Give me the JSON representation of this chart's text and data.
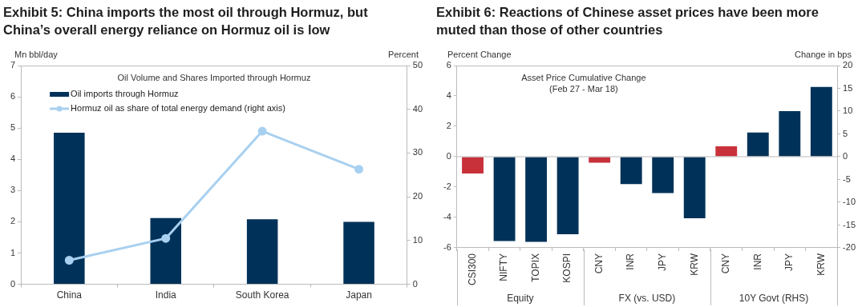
{
  "chart_data": [
    {
      "type": "bar",
      "title": "Exhibit 5: China imports the most oil through Hormuz, but China’s overall energy reliance on Hormuz oil is low",
      "subtitle": "Oil Volume and Shares Imported through Hormuz",
      "ylabel": "Mn bbl/day",
      "y2label": "Percent",
      "categories": [
        "China",
        "India",
        "South Korea",
        "Japan"
      ],
      "series": [
        {
          "name": "Oil imports through Hormuz",
          "color": "#003259",
          "values": [
            4.85,
            2.12,
            2.08,
            2.0
          ]
        },
        {
          "name": "Hormuz oil as share of total energy demand (right axis)",
          "type": "line",
          "axis": "y2",
          "color": "#a8d0f0",
          "values": [
            5.5,
            10.5,
            35,
            26.3
          ]
        }
      ],
      "ylim": [
        0,
        7
      ],
      "yticks": [
        0,
        1,
        2,
        3,
        4,
        5,
        6,
        7
      ],
      "y2lim": [
        0,
        50
      ],
      "y2ticks": [
        0,
        10,
        20,
        30,
        40,
        50
      ],
      "grid": false,
      "legend": "top left",
      "marker": "circle",
      "line_style": "solid"
    },
    {
      "type": "bar",
      "title": "Exhibit 6: Reactions of Chinese asset prices have been more muted than those of other countries",
      "subtitle": "Asset Price Cumulative Change\n(Feb 27 - Mar 18)",
      "ylabel": "Percent Change",
      "y2label": "Change in bps",
      "categories": [
        "CSI300",
        "NIFTY",
        "TOPIX",
        "KOSPI",
        "CNY",
        "INR",
        "JPY",
        "KRW",
        "CNY",
        "INR",
        "JPY",
        "KRW"
      ],
      "series": [
        {
          "colors": [
            "#c8313a",
            "#003259",
            "#003259",
            "#003259",
            "#c8313a",
            "#003259",
            "#003259",
            "#003259",
            "#003259",
            "#003259",
            "#003259",
            "#003259"
          ],
          "values": [
            -1.1,
            -5.55,
            -5.6,
            -5.1,
            -0.4,
            -1.8,
            -2.4,
            -4.05,
            null,
            null,
            null,
            null
          ]
        },
        {
          "axis": "y2",
          "colors": [
            "#003259",
            "#003259",
            "#003259",
            "#003259",
            "#003259",
            "#003259",
            "#003259",
            "#003259",
            "#c8313a",
            "#003259",
            "#003259",
            "#003259"
          ],
          "values": [
            null,
            null,
            null,
            null,
            null,
            null,
            null,
            null,
            2.3,
            5.3,
            10,
            15.3
          ]
        }
      ],
      "ylim": [
        -6,
        6
      ],
      "yticks": [
        -6,
        -4,
        -2,
        0,
        2,
        4,
        6
      ],
      "y2lim": [
        -20,
        20
      ],
      "y2ticks": [
        -20,
        -15,
        -10,
        -5,
        0,
        5,
        10,
        15,
        20
      ],
      "ref_lines": [
        {
          "axis": "y",
          "value": 0,
          "color": "#bbbbbb"
        }
      ],
      "annotations": [
        "Equity",
        "FX (vs. USD)",
        "10Y Govt (RHS)"
      ],
      "grid": false
    }
  ]
}
